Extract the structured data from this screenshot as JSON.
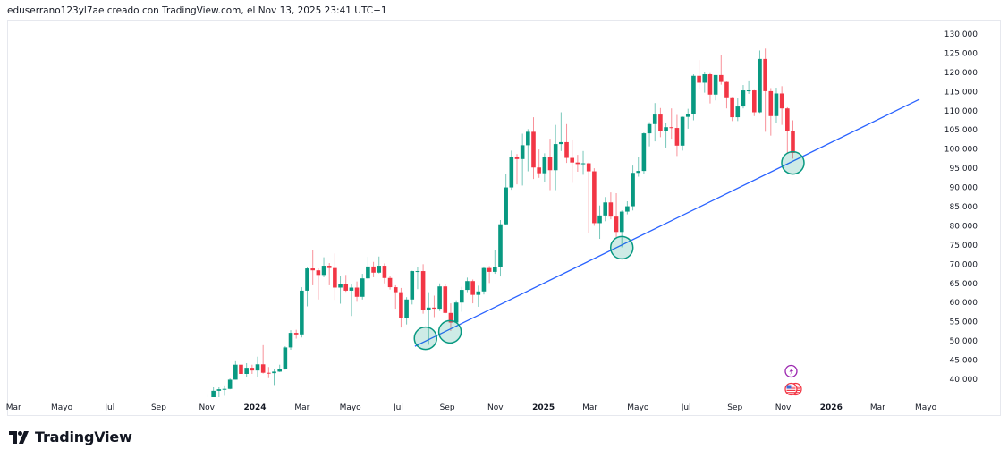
{
  "caption": "eduserrano123yl7ae creado con TradingView.com, el Nov 13, 2025 23:41 UTC+1",
  "logo": {
    "text": "TradingView"
  },
  "colors": {
    "up": "#089981",
    "down": "#f23645",
    "trendline": "#2962ff",
    "circle": "#089981",
    "event_purple": "#9c27b0",
    "event_red": "#f23645"
  },
  "chart_data": {
    "type": "candlestick",
    "interval": "weekly",
    "ylim": [
      30000,
      135000
    ],
    "y_ticks": [
      40000,
      45000,
      50000,
      55000,
      60000,
      65000,
      70000,
      75000,
      80000,
      85000,
      90000,
      95000,
      100000,
      105000,
      110000,
      115000,
      120000,
      125000,
      130000
    ],
    "y_tick_labels": [
      "40.000",
      "45.000",
      "50.000",
      "55.000",
      "60.000",
      "65.000",
      "70.000",
      "75.000",
      "80.000",
      "85.000",
      "90.000",
      "95.000",
      "100.000",
      "105.000",
      "110.000",
      "115.000",
      "120.000",
      "125.000",
      "130.000"
    ],
    "x_ticks": [
      {
        "label": "Mar",
        "date": "2023-03-01",
        "year": false
      },
      {
        "label": "Mayo",
        "date": "2023-05-01",
        "year": false
      },
      {
        "label": "Jul",
        "date": "2023-07-01",
        "year": false
      },
      {
        "label": "Sep",
        "date": "2023-09-01",
        "year": false
      },
      {
        "label": "Nov",
        "date": "2023-11-01",
        "year": false
      },
      {
        "label": "2024",
        "date": "2024-01-01",
        "year": true
      },
      {
        "label": "Mar",
        "date": "2024-03-01",
        "year": false
      },
      {
        "label": "Mayo",
        "date": "2024-05-01",
        "year": false
      },
      {
        "label": "Jul",
        "date": "2024-07-01",
        "year": false
      },
      {
        "label": "Sep",
        "date": "2024-09-01",
        "year": false
      },
      {
        "label": "Nov",
        "date": "2024-11-01",
        "year": false
      },
      {
        "label": "2025",
        "date": "2025-01-01",
        "year": true
      },
      {
        "label": "Mar",
        "date": "2025-03-01",
        "year": false
      },
      {
        "label": "Mayo",
        "date": "2025-05-01",
        "year": false
      },
      {
        "label": "Jul",
        "date": "2025-07-01",
        "year": false
      },
      {
        "label": "Sep",
        "date": "2025-09-01",
        "year": false
      },
      {
        "label": "Nov",
        "date": "2025-11-01",
        "year": false
      },
      {
        "label": "2026",
        "date": "2026-01-01",
        "year": true
      },
      {
        "label": "Mar",
        "date": "2026-03-01",
        "year": false
      },
      {
        "label": "Mayo",
        "date": "2026-05-01",
        "year": false
      }
    ],
    "candles_columns": [
      "date",
      "open",
      "high",
      "low",
      "close"
    ],
    "candles": [
      [
        "2023-10-23",
        30000,
        35200,
        29800,
        34500
      ],
      [
        "2023-10-30",
        34500,
        35900,
        34100,
        35000
      ],
      [
        "2023-11-06",
        35000,
        37900,
        34600,
        37000
      ],
      [
        "2023-11-13",
        37000,
        37900,
        34800,
        37400
      ],
      [
        "2023-11-20",
        37400,
        38400,
        35700,
        37500
      ],
      [
        "2023-11-27",
        37500,
        40200,
        37400,
        39900
      ],
      [
        "2023-12-04",
        39900,
        44700,
        39900,
        43800
      ],
      [
        "2023-12-11",
        43800,
        44000,
        40600,
        41400
      ],
      [
        "2023-12-18",
        41400,
        44200,
        40500,
        43000
      ],
      [
        "2023-12-25",
        43000,
        43800,
        41400,
        42300
      ],
      [
        "2024-01-01",
        42300,
        45900,
        40700,
        43900
      ],
      [
        "2024-01-08",
        43900,
        48900,
        41500,
        41700
      ],
      [
        "2024-01-15",
        41700,
        43200,
        40300,
        41600
      ],
      [
        "2024-01-22",
        41600,
        42800,
        38500,
        42000
      ],
      [
        "2024-01-29",
        42000,
        43800,
        41900,
        42600
      ],
      [
        "2024-02-05",
        42600,
        48600,
        42500,
        48300
      ],
      [
        "2024-02-12",
        48300,
        52800,
        47700,
        52100
      ],
      [
        "2024-02-19",
        52100,
        52900,
        50600,
        51700
      ],
      [
        "2024-02-26",
        51700,
        64000,
        50900,
        63100
      ],
      [
        "2024-03-04",
        63100,
        69200,
        59000,
        68900
      ],
      [
        "2024-03-11",
        68900,
        73800,
        64500,
        68400
      ],
      [
        "2024-03-18",
        68400,
        68900,
        60800,
        67200
      ],
      [
        "2024-03-25",
        67200,
        71800,
        66600,
        69600
      ],
      [
        "2024-04-01",
        69600,
        70300,
        64500,
        69000
      ],
      [
        "2024-04-08",
        69000,
        72800,
        60700,
        63900
      ],
      [
        "2024-04-15",
        63900,
        66900,
        59700,
        64900
      ],
      [
        "2024-04-22",
        64900,
        67200,
        62800,
        63100
      ],
      [
        "2024-04-29",
        63100,
        64700,
        56500,
        63900
      ],
      [
        "2024-05-06",
        63900,
        65500,
        60200,
        61500
      ],
      [
        "2024-05-13",
        61500,
        67500,
        60800,
        66300
      ],
      [
        "2024-05-20",
        66300,
        71900,
        66100,
        69400
      ],
      [
        "2024-05-27",
        69400,
        70600,
        66600,
        67800
      ],
      [
        "2024-06-03",
        67800,
        72000,
        67600,
        69600
      ],
      [
        "2024-06-10",
        69600,
        70200,
        65000,
        66400
      ],
      [
        "2024-06-17",
        66400,
        66900,
        63400,
        64000
      ],
      [
        "2024-06-24",
        64000,
        64500,
        58400,
        62700
      ],
      [
        "2024-07-01",
        62700,
        63800,
        53500,
        56000
      ],
      [
        "2024-07-08",
        56000,
        61400,
        54300,
        60800
      ],
      [
        "2024-07-15",
        60800,
        68300,
        59500,
        68200
      ],
      [
        "2024-07-22",
        68200,
        69300,
        63500,
        68200
      ],
      [
        "2024-07-29",
        68200,
        70000,
        57100,
        58100
      ],
      [
        "2024-08-05",
        58100,
        62700,
        49000,
        58700
      ],
      [
        "2024-08-12",
        58700,
        61800,
        56200,
        58400
      ],
      [
        "2024-08-19",
        58400,
        65000,
        57800,
        64200
      ],
      [
        "2024-08-26",
        64200,
        64900,
        57200,
        57300
      ],
      [
        "2024-09-02",
        57300,
        59800,
        52600,
        54800
      ],
      [
        "2024-09-09",
        54800,
        60600,
        54600,
        60000
      ],
      [
        "2024-09-16",
        60000,
        64100,
        57600,
        63300
      ],
      [
        "2024-09-23",
        63300,
        66500,
        62700,
        65600
      ],
      [
        "2024-09-30",
        65600,
        66000,
        59800,
        62000
      ],
      [
        "2024-10-07",
        62000,
        64400,
        58900,
        62900
      ],
      [
        "2024-10-14",
        62900,
        69400,
        62100,
        69000
      ],
      [
        "2024-10-21",
        69000,
        69500,
        65100,
        68000
      ],
      [
        "2024-10-28",
        68000,
        73600,
        67500,
        69300
      ],
      [
        "2024-11-04",
        69300,
        81500,
        66800,
        80400
      ],
      [
        "2024-11-11",
        80400,
        93500,
        80200,
        90000
      ],
      [
        "2024-11-18",
        90000,
        99600,
        89400,
        97900
      ],
      [
        "2024-11-25",
        97900,
        98700,
        90800,
        97400
      ],
      [
        "2024-12-02",
        97400,
        104000,
        90500,
        101000
      ],
      [
        "2024-12-09",
        101000,
        105200,
        94200,
        104500
      ],
      [
        "2024-12-16",
        104500,
        108300,
        92200,
        95200
      ],
      [
        "2024-12-23",
        95200,
        99900,
        92500,
        93700
      ],
      [
        "2024-12-30",
        93700,
        98900,
        91500,
        98000
      ],
      [
        "2025-01-06",
        98000,
        102700,
        89300,
        94500
      ],
      [
        "2025-01-13",
        94500,
        106300,
        89300,
        101300
      ],
      [
        "2025-01-20",
        101300,
        109600,
        99500,
        101800
      ],
      [
        "2025-01-27",
        101800,
        106500,
        96400,
        97700
      ],
      [
        "2025-02-03",
        97700,
        102500,
        91200,
        96500
      ],
      [
        "2025-02-10",
        96500,
        98500,
        94100,
        96100
      ],
      [
        "2025-02-17",
        96100,
        99500,
        93300,
        96300
      ],
      [
        "2025-02-24",
        96300,
        96500,
        78200,
        94200
      ],
      [
        "2025-03-03",
        94200,
        95000,
        80000,
        80700
      ],
      [
        "2025-03-10",
        80700,
        85300,
        76600,
        82700
      ],
      [
        "2025-03-17",
        82700,
        87500,
        81200,
        86100
      ],
      [
        "2025-03-24",
        86100,
        88700,
        81700,
        82400
      ],
      [
        "2025-03-31",
        82400,
        88500,
        77000,
        78400
      ],
      [
        "2025-04-07",
        78400,
        84000,
        74400,
        83700
      ],
      [
        "2025-04-14",
        83700,
        86400,
        83000,
        85100
      ],
      [
        "2025-04-21",
        85100,
        95700,
        84000,
        93800
      ],
      [
        "2025-04-28",
        93800,
        97900,
        92800,
        94300
      ],
      [
        "2025-05-05",
        94300,
        104300,
        93400,
        104100
      ],
      [
        "2025-05-12",
        104100,
        107000,
        100700,
        106500
      ],
      [
        "2025-05-19",
        106500,
        112000,
        102000,
        109000
      ],
      [
        "2025-05-26",
        109000,
        110700,
        103100,
        104600
      ],
      [
        "2025-06-02",
        104600,
        106800,
        100400,
        105700
      ],
      [
        "2025-06-09",
        105700,
        110600,
        102700,
        105500
      ],
      [
        "2025-06-16",
        105500,
        108900,
        98200,
        100900
      ],
      [
        "2025-06-23",
        100900,
        108500,
        99600,
        108400
      ],
      [
        "2025-06-30",
        108400,
        110500,
        105300,
        109200
      ],
      [
        "2025-07-07",
        109200,
        119500,
        107500,
        119100
      ],
      [
        "2025-07-14",
        119100,
        123200,
        115700,
        117300
      ],
      [
        "2025-07-21",
        117300,
        120200,
        114700,
        119500
      ],
      [
        "2025-07-28",
        119500,
        119800,
        111900,
        114200
      ],
      [
        "2025-08-04",
        114200,
        119300,
        112700,
        119300
      ],
      [
        "2025-08-11",
        119300,
        124500,
        116800,
        117500
      ],
      [
        "2025-08-18",
        117500,
        117600,
        110600,
        113500
      ],
      [
        "2025-08-25",
        113500,
        113600,
        107300,
        108300
      ],
      [
        "2025-09-01",
        108300,
        113400,
        107300,
        111100
      ],
      [
        "2025-09-08",
        111100,
        116700,
        110600,
        115300
      ],
      [
        "2025-09-15",
        115300,
        117900,
        114400,
        115300
      ],
      [
        "2025-09-22",
        115300,
        115400,
        108600,
        109600
      ],
      [
        "2025-09-29",
        109600,
        125700,
        109400,
        123500
      ],
      [
        "2025-10-06",
        123500,
        126200,
        104500,
        115100
      ],
      [
        "2025-10-13",
        115100,
        115900,
        103500,
        108600
      ],
      [
        "2025-10-20",
        108600,
        116000,
        106700,
        114500
      ],
      [
        "2025-10-27",
        114500,
        116400,
        106300,
        110600
      ],
      [
        "2025-11-03",
        110600,
        110900,
        98900,
        104700
      ],
      [
        "2025-11-10",
        104700,
        107500,
        97500,
        99000
      ]
    ],
    "trendline": {
      "start": {
        "date": "2024-07-22",
        "price": 48600
      },
      "end": {
        "date": "2026-04-23",
        "price": 113000
      }
    },
    "touch_points": [
      {
        "date": "2024-08-01",
        "price": 50700
      },
      {
        "date": "2024-09-01",
        "price": 52400
      },
      {
        "date": "2025-04-07",
        "price": 74300
      },
      {
        "date": "2025-11-10",
        "price": 96400
      }
    ],
    "events": [
      {
        "icon": "lightning-icon",
        "date": "2025-11-10"
      },
      {
        "icon": "us-flag-icon",
        "date": "2025-11-10"
      }
    ]
  }
}
